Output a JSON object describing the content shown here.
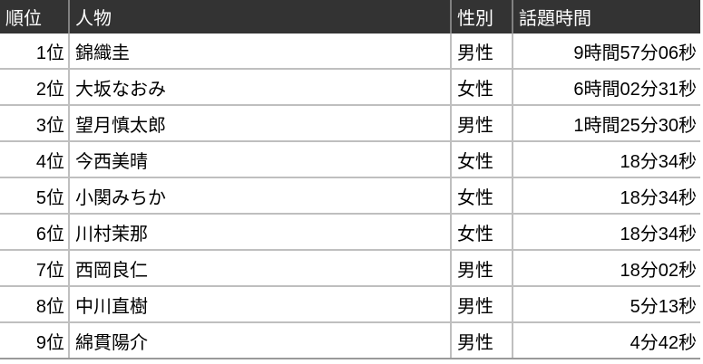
{
  "chart_data": {
    "type": "table",
    "columns": [
      "順位",
      "人物",
      "性別",
      "話題時間"
    ],
    "rows": [
      {
        "rank": "1位",
        "person": "錦織圭",
        "gender": "男性",
        "time": "9時間57分06秒"
      },
      {
        "rank": "2位",
        "person": "大坂なおみ",
        "gender": "女性",
        "time": "6時間02分31秒"
      },
      {
        "rank": "3位",
        "person": "望月慎太郎",
        "gender": "男性",
        "time": "1時間25分30秒"
      },
      {
        "rank": "4位",
        "person": "今西美晴",
        "gender": "女性",
        "time": "18分34秒"
      },
      {
        "rank": "5位",
        "person": "小関みちか",
        "gender": "女性",
        "time": "18分34秒"
      },
      {
        "rank": "6位",
        "person": "川村茉那",
        "gender": "女性",
        "time": "18分34秒"
      },
      {
        "rank": "7位",
        "person": "西岡良仁",
        "gender": "男性",
        "time": "18分02秒"
      },
      {
        "rank": "8位",
        "person": "中川直樹",
        "gender": "男性",
        "time": "5分13秒"
      },
      {
        "rank": "9位",
        "person": "綿貫陽介",
        "gender": "男性",
        "time": "4分42秒"
      }
    ]
  },
  "colors": {
    "header_background": "#333333",
    "header_text": "#ffffff",
    "header_divider": "#808080",
    "grid_line": "#bfbfbf",
    "bottom_border": "#999999",
    "body_text": "#000000",
    "row_background": "#ffffff"
  }
}
